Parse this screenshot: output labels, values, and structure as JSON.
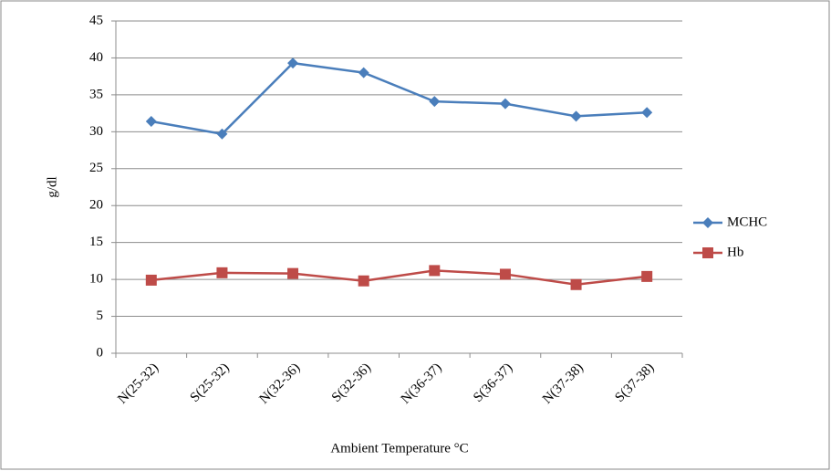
{
  "chart_data": {
    "type": "line",
    "y_label": "g/dl",
    "x_label": "Ambient Temperature °C",
    "categories": [
      "N(25-32)",
      "S(25-32)",
      "N(32-36)",
      "S(32-36)",
      "N(36-37)",
      "S(36-37)",
      "N(37-38)",
      "S(37-38)"
    ],
    "series": [
      {
        "name": "MCHC",
        "color": "#4a7ebb",
        "marker": "diamond",
        "values": [
          31.4,
          29.7,
          39.3,
          38.0,
          34.1,
          33.8,
          32.1,
          32.6
        ]
      },
      {
        "name": "Hb",
        "color": "#be4b48",
        "marker": "square",
        "values": [
          9.9,
          10.9,
          10.8,
          9.8,
          11.2,
          10.7,
          9.3,
          10.4
        ]
      }
    ],
    "ylim": [
      0,
      45
    ],
    "yticks": [
      0,
      5,
      10,
      15,
      20,
      25,
      30,
      35,
      40,
      45
    ],
    "grid": true,
    "legend": "right"
  }
}
